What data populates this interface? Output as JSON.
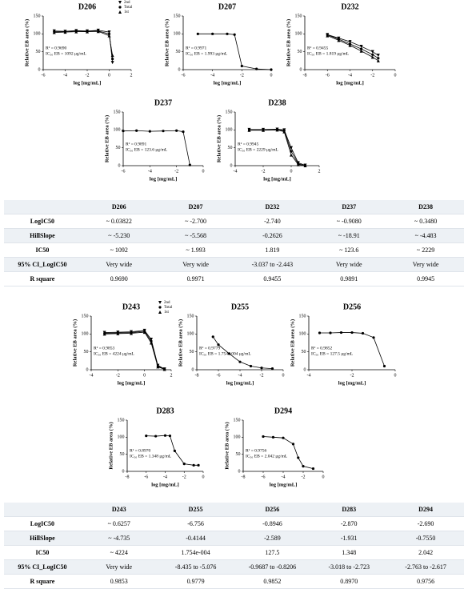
{
  "chart_data": [
    {
      "type": "line",
      "title": "D206",
      "ylabel": "Relative EB area (%)",
      "xlabel": "log [mg/mL]",
      "xlim": [
        -6,
        2
      ],
      "xticks": [
        -6,
        -4,
        -2,
        0,
        2
      ],
      "ylim": [
        0,
        150
      ],
      "yticks": [
        0,
        50,
        100,
        150
      ],
      "x": [
        -5,
        -4,
        -3,
        -2,
        -1,
        0,
        0.3
      ],
      "series": [
        {
          "name": "2nd",
          "marker": "triangle-down",
          "values": [
            108,
            107,
            109,
            108,
            110,
            105,
            20
          ]
        },
        {
          "name": "Total",
          "marker": "circle",
          "values": [
            106,
            106,
            108,
            107,
            108,
            100,
            30
          ]
        },
        {
          "name": "1st",
          "marker": "triangle-up",
          "values": [
            104,
            105,
            106,
            106,
            107,
            95,
            40
          ]
        }
      ],
      "legend": "top-right",
      "annotations": [
        "R² = 0.9690",
        "IC₅₀ EB = 1092 μg/mL"
      ]
    },
    {
      "type": "line",
      "title": "D207",
      "ylabel": "Relative EB area (%)",
      "xlabel": "log [mg/mL]",
      "xlim": [
        -6,
        0
      ],
      "xticks": [
        -6,
        -4,
        -2,
        0
      ],
      "ylim": [
        0,
        150
      ],
      "yticks": [
        0,
        50,
        100,
        150
      ],
      "x": [
        -5,
        -4,
        -3,
        -2.5,
        -2,
        -1,
        0
      ],
      "series": [
        {
          "marker": "circle",
          "values": [
            100,
            100,
            100,
            98,
            10,
            2,
            0
          ]
        }
      ],
      "annotations": [
        "R² = 0.9971",
        "IC₅₀ EB = 1.993 μg/mL"
      ]
    },
    {
      "type": "line",
      "title": "D232",
      "ylabel": "Relative EB area (%)",
      "xlabel": "log [mg/mL]",
      "xlim": [
        -8,
        0
      ],
      "xticks": [
        -8,
        -6,
        -4,
        -2,
        0
      ],
      "ylim": [
        0,
        150
      ],
      "yticks": [
        0,
        50,
        100,
        150
      ],
      "x": [
        -6,
        -5,
        -4,
        -3,
        -2,
        -1.5
      ],
      "series": [
        {
          "marker": "triangle-down",
          "values": [
            98,
            88,
            78,
            65,
            50,
            40
          ]
        },
        {
          "marker": "circle",
          "values": [
            97,
            85,
            72,
            58,
            42,
            32
          ]
        },
        {
          "marker": "triangle-up",
          "values": [
            95,
            82,
            68,
            52,
            35,
            25
          ]
        }
      ],
      "annotations": [
        "R² = 0.9455",
        "IC₅₀ EB = 1.819 μg/mL"
      ]
    },
    {
      "type": "line",
      "title": "D237",
      "ylabel": "Relative EB area (%)",
      "xlabel": "log [mg/mL]",
      "xlim": [
        -6,
        0
      ],
      "xticks": [
        -6,
        -4,
        -2,
        0
      ],
      "ylim": [
        0,
        150
      ],
      "yticks": [
        0,
        50,
        100,
        150
      ],
      "x": [
        -6,
        -5,
        -4,
        -3,
        -2,
        -1.5,
        -1
      ],
      "series": [
        {
          "marker": "circle",
          "values": [
            97,
            98,
            96,
            97,
            98,
            95,
            2
          ]
        }
      ],
      "annotations": [
        "R² = 0.9891",
        "IC₅₀ EB = 123.6 μg/mL"
      ]
    },
    {
      "type": "line",
      "title": "D238",
      "ylabel": "Relative EB area (%)",
      "xlabel": "log [mg/mL]",
      "xlim": [
        -4,
        2
      ],
      "xticks": [
        -4,
        -2,
        0,
        2
      ],
      "ylim": [
        0,
        150
      ],
      "yticks": [
        0,
        50,
        100,
        150
      ],
      "x": [
        -3,
        -2,
        -1,
        -0.5,
        0,
        0.5,
        1
      ],
      "series": [
        {
          "marker": "triangle-down",
          "values": [
            101,
            101,
            102,
            100,
            50,
            8,
            1
          ]
        },
        {
          "marker": "circle",
          "values": [
            100,
            100,
            101,
            98,
            40,
            5,
            0
          ]
        },
        {
          "marker": "triangle-up",
          "values": [
            99,
            99,
            100,
            95,
            30,
            3,
            0
          ]
        }
      ],
      "annotations": [
        "R² = 0.9945",
        "IC₅₀ EB = 2229 μg/mL"
      ]
    },
    {
      "type": "line",
      "title": "D243",
      "ylabel": "Relative EB area (%)",
      "xlabel": "log [mg/mL]",
      "xlim": [
        -4,
        2
      ],
      "xticks": [
        -4,
        -2,
        0,
        2
      ],
      "ylim": [
        0,
        150
      ],
      "yticks": [
        0,
        50,
        100,
        150
      ],
      "x": [
        -3,
        -2,
        -1,
        0,
        0.5,
        1,
        1.5
      ],
      "series": [
        {
          "name": "2nd",
          "marker": "triangle-down",
          "values": [
            104,
            105,
            106,
            110,
            85,
            12,
            2
          ]
        },
        {
          "name": "Total",
          "marker": "circle",
          "values": [
            102,
            103,
            104,
            108,
            80,
            10,
            2
          ]
        },
        {
          "name": "1st",
          "marker": "triangle-up",
          "values": [
            100,
            101,
            102,
            105,
            75,
            8,
            1
          ]
        }
      ],
      "legend": "top-right",
      "annotations": [
        "R² = 0.9853",
        "IC₅₀ EB = 4224 μg/mL"
      ]
    },
    {
      "type": "line",
      "title": "D255",
      "ylabel": "Relative EB area (%)",
      "xlabel": "log [mg/mL]",
      "xlim": [
        -8,
        0
      ],
      "xticks": [
        -8,
        -6,
        -4,
        -2,
        0
      ],
      "ylim": [
        0,
        150
      ],
      "yticks": [
        0,
        50,
        100,
        150
      ],
      "x": [
        -6.5,
        -6,
        -5,
        -4,
        -3,
        -2,
        -1
      ],
      "series": [
        {
          "marker": "circle",
          "values": [
            92,
            70,
            45,
            22,
            10,
            5,
            3
          ]
        }
      ],
      "annotations": [
        "R² = 0.9779",
        "IC₅₀ EB = 1.754e-004 μg/mL"
      ]
    },
    {
      "type": "line",
      "title": "D256",
      "ylabel": "Relative EB area (%)",
      "xlabel": "log [mg/mL]",
      "xlim": [
        -4,
        0
      ],
      "xticks": [
        -4,
        -2,
        0
      ],
      "ylim": [
        0,
        150
      ],
      "yticks": [
        0,
        50,
        100,
        150
      ],
      "x": [
        -3.5,
        -3,
        -2.5,
        -2,
        -1.5,
        -1,
        -0.5
      ],
      "series": [
        {
          "marker": "circle",
          "values": [
            103,
            103,
            104,
            104,
            102,
            90,
            10
          ]
        }
      ],
      "annotations": [
        "R² = 0.9852",
        "IC₅₀ EB = 127.5 μg/mL"
      ]
    },
    {
      "type": "line",
      "title": "D283",
      "ylabel": "Relative EB area (%)",
      "xlabel": "log [mg/mL]",
      "xlim": [
        -8,
        0
      ],
      "xticks": [
        -8,
        -6,
        -4,
        -2,
        0
      ],
      "ylim": [
        0,
        150
      ],
      "yticks": [
        0,
        50,
        100,
        150
      ],
      "x": [
        -6,
        -5,
        -4,
        -3.5,
        -3,
        -2,
        -1,
        -0.5
      ],
      "series": [
        {
          "marker": "circle",
          "values": [
            104,
            103,
            105,
            104,
            60,
            22,
            18,
            18
          ]
        }
      ],
      "annotations": [
        "R² = 0.8970",
        "IC₅₀ EB = 1.348 μg/mL"
      ]
    },
    {
      "type": "line",
      "title": "D294",
      "ylabel": "Relative EB area (%)",
      "xlabel": "log [mg/mL]",
      "xlim": [
        -8,
        0
      ],
      "xticks": [
        -8,
        -6,
        -4,
        -2,
        0
      ],
      "ylim": [
        0,
        150
      ],
      "yticks": [
        0,
        50,
        100,
        150
      ],
      "x": [
        -6,
        -5,
        -4,
        -3,
        -2.5,
        -2,
        -1
      ],
      "series": [
        {
          "marker": "circle",
          "values": [
            102,
            100,
            98,
            80,
            40,
            15,
            8
          ]
        }
      ],
      "annotations": [
        "R² = 0.9756",
        "IC₅₀ EB = 2.042 μg/mL"
      ]
    }
  ],
  "tables": [
    {
      "columns": [
        "D206",
        "D207",
        "D232",
        "D237",
        "D238"
      ],
      "rows": [
        [
          "LogIC50",
          "~ 0.03822",
          "~ -2.700",
          "-2.740",
          "~ -0.9080",
          "~ 0.3480"
        ],
        [
          "HillSlope",
          "~ -5.230",
          "~ -5.568",
          "-0.2626",
          "~ -18.91",
          "~ -4.483"
        ],
        [
          "IC50",
          "~ 1092",
          "~ 1.993",
          "1.819",
          "~ 123.6",
          "~ 2229"
        ],
        [
          "95% CI_LogIC50",
          "Very wide",
          "Very wide",
          "-3.037 to -2.443",
          "Very wide",
          "Very wide"
        ],
        [
          "R square",
          "0.9690",
          "0.9971",
          "0.9455",
          "0.9891",
          "0.9945"
        ]
      ]
    },
    {
      "columns": [
        "D243",
        "D255",
        "D256",
        "D283",
        "D294"
      ],
      "rows": [
        [
          "LogIC50",
          "~ 0.6257",
          "-6.756",
          "-0.8946",
          "-2.870",
          "-2.690"
        ],
        [
          "HillSlope",
          "~ -4.735",
          "-0.4144",
          "-2.589",
          "-1.931",
          "-0.7550"
        ],
        [
          "IC50",
          "~ 4224",
          "1.754e-004",
          "127.5",
          "1.348",
          "2.042"
        ],
        [
          "95% CI_LogIC50",
          "Very wide",
          "-8.435 to -5.076",
          "-0.9687 to -0.8206",
          "-3.018 to -2.723",
          "-2.763 to -2.617"
        ],
        [
          "R square",
          "0.9853",
          "0.9779",
          "0.9852",
          "0.8970",
          "0.9756"
        ]
      ]
    }
  ]
}
